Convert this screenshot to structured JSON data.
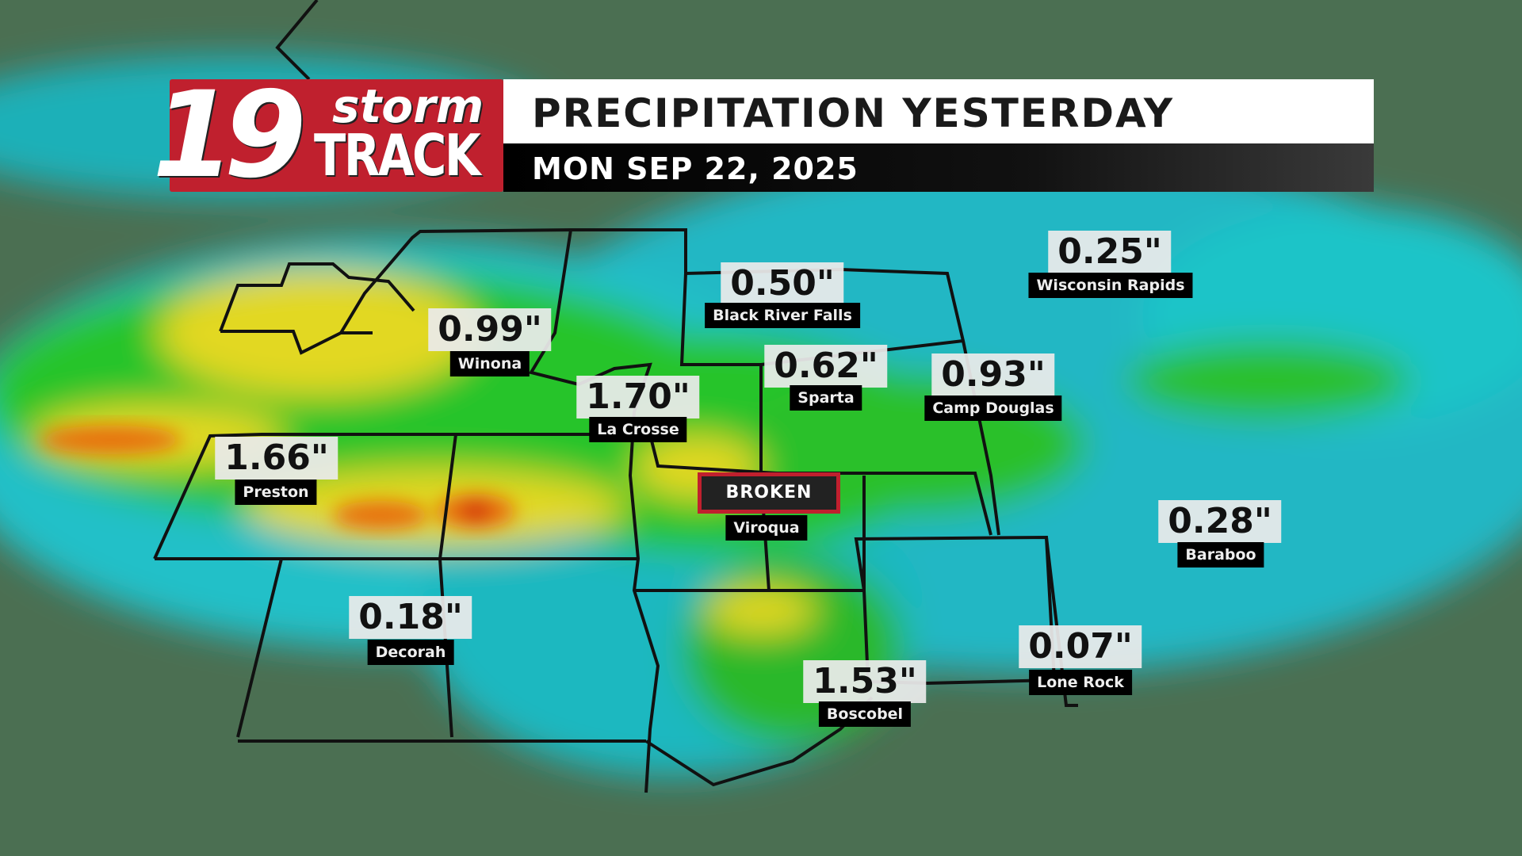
{
  "header": {
    "logo": {
      "number": "19",
      "word1": "storm",
      "word2": "TRACK"
    },
    "title": "PRECIPITATION YESTERDAY",
    "date": "MON SEP 22, 2025"
  },
  "colors": {
    "brand_red": "#c0202e",
    "light_precip": "#20d8d8",
    "moderate_precip": "#22c020",
    "heavy_precip": "#e8e020",
    "very_heavy_precip": "#e87010",
    "extreme_precip": "#d02010"
  },
  "stations": [
    {
      "name": "Wisconsin Rapids",
      "value": "0.25\""
    },
    {
      "name": "Black River Falls",
      "value": "0.50\""
    },
    {
      "name": "Winona",
      "value": "0.99\""
    },
    {
      "name": "Sparta",
      "value": "0.62\""
    },
    {
      "name": "Camp Douglas",
      "value": "0.93\""
    },
    {
      "name": "La Crosse",
      "value": "1.70\""
    },
    {
      "name": "Preston",
      "value": "1.66\""
    },
    {
      "name": "Viroqua",
      "value": "BROKEN"
    },
    {
      "name": "Baraboo",
      "value": "0.28\""
    },
    {
      "name": "Decorah",
      "value": "0.18\""
    },
    {
      "name": "Lone Rock",
      "value": "0.07\""
    },
    {
      "name": "Boscobel",
      "value": "1.53\""
    }
  ]
}
